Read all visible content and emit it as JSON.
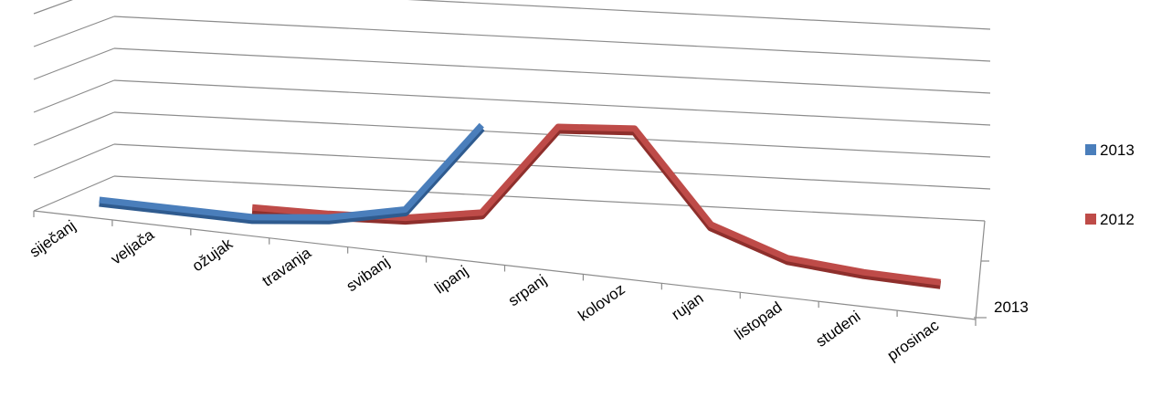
{
  "chart_data": {
    "type": "line",
    "title": "",
    "xlabel": "",
    "ylabel": "",
    "grid": true,
    "legend_position": "right",
    "depth_axis_label": "2013",
    "categories": [
      "siječanj",
      "veljača",
      "ožujak",
      "travanja",
      "svibanj",
      "lipanj",
      "srpanj",
      "kolovoz",
      "rujan",
      "listopad",
      "studeni",
      "prosinac"
    ],
    "ylim": [
      0,
      6
    ],
    "series": [
      {
        "name": "2013",
        "color": "#4a7ebb",
        "values": [
          0.1,
          0.05,
          0.0,
          0.25,
          0.8,
          4.1,
          null,
          null,
          null,
          null,
          null,
          null
        ]
      },
      {
        "name": "2012",
        "color": "#be4b48",
        "values": [
          null,
          null,
          0.35,
          0.38,
          0.5,
          0.95,
          4.3,
          4.5,
          1.3,
          0.35,
          0.1,
          0.0
        ]
      }
    ]
  }
}
